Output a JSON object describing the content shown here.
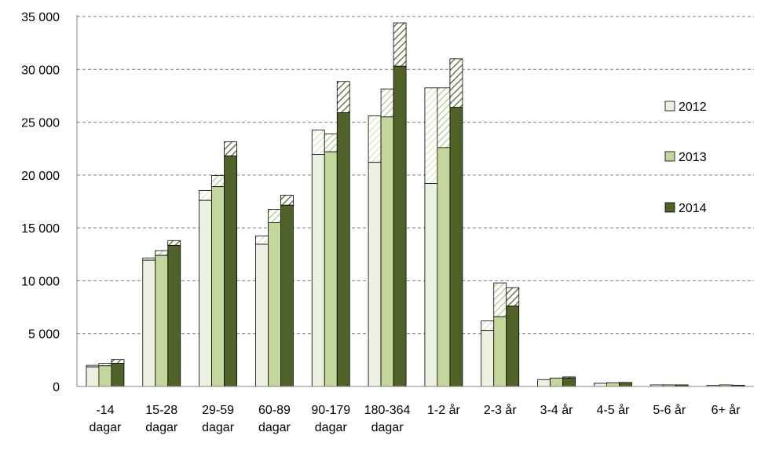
{
  "chart_data": {
    "type": "bar",
    "stacked_overlay": true,
    "title": "",
    "xlabel": "",
    "ylabel": "",
    "ylim": [
      0,
      35000
    ],
    "y_ticks": [
      {
        "value": 0,
        "label": "0"
      },
      {
        "value": 5000,
        "label": "5 000"
      },
      {
        "value": 10000,
        "label": "10 000"
      },
      {
        "value": 15000,
        "label": "15 000"
      },
      {
        "value": 20000,
        "label": "20 000"
      },
      {
        "value": 25000,
        "label": "25 000"
      },
      {
        "value": 30000,
        "label": "30 000"
      },
      {
        "value": 35000,
        "label": "35 000"
      }
    ],
    "grid": "horizontal dashed",
    "legend_position": "right",
    "categories": [
      [
        "-14",
        "dagar"
      ],
      [
        "15-28",
        "dagar"
      ],
      [
        "29-59",
        "dagar"
      ],
      [
        "60-89",
        "dagar"
      ],
      [
        "90-179",
        "dagar"
      ],
      [
        "180-364",
        "dagar"
      ],
      [
        "1-2 år"
      ],
      [
        "2-3 år"
      ],
      [
        "3-4 år"
      ],
      [
        "4-5 år"
      ],
      [
        "5-6 år"
      ],
      [
        "6+ år"
      ]
    ],
    "series": [
      {
        "name": "2012",
        "color": "#ebf1de",
        "values": [
          1850,
          11950,
          17600,
          13450,
          21950,
          21200,
          19200,
          5300,
          650,
          300,
          150,
          100
        ],
        "totals": [
          2000,
          12150,
          18550,
          14250,
          24250,
          25600,
          28250,
          6200,
          650,
          300,
          150,
          100
        ]
      },
      {
        "name": "2013",
        "color": "#c3d69b",
        "values": [
          1950,
          12400,
          18900,
          15500,
          22200,
          25500,
          22600,
          6600,
          800,
          350,
          150,
          150
        ],
        "totals": [
          2200,
          12850,
          19950,
          16750,
          23900,
          28150,
          28250,
          9800,
          800,
          350,
          150,
          150
        ]
      },
      {
        "name": "2014",
        "color": "#4f6228",
        "values": [
          2200,
          13350,
          21800,
          17150,
          25900,
          30300,
          26400,
          7600,
          800,
          380,
          150,
          120
        ],
        "totals": [
          2550,
          13800,
          23150,
          18100,
          28850,
          34400,
          31000,
          9350,
          900,
          380,
          150,
          120
        ]
      }
    ]
  }
}
